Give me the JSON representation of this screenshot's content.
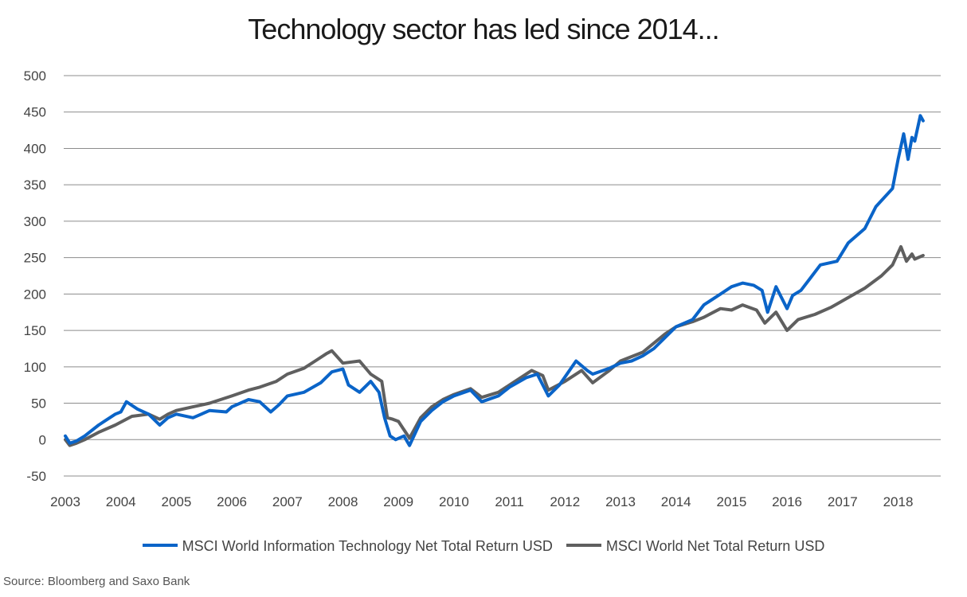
{
  "chart_data": {
    "type": "line",
    "title": "Technology sector has led since 2014...",
    "xlabel": "",
    "ylabel": "",
    "ylim": [
      -50,
      500
    ],
    "xlim": [
      2003,
      2018.75
    ],
    "yticks": [
      -50,
      0,
      50,
      100,
      150,
      200,
      250,
      300,
      350,
      400,
      450,
      500
    ],
    "xticks": [
      "2003",
      "2004",
      "2005",
      "2006",
      "2007",
      "2008",
      "2009",
      "2010",
      "2011",
      "2012",
      "2013",
      "2014",
      "2015",
      "2016",
      "2017",
      "2018"
    ],
    "grid": true,
    "legend_position": "bottom",
    "series": [
      {
        "name": "MSCI World Information Technology Net Total Return USD",
        "color": "#0a64c8",
        "x": [
          2003.0,
          2003.08,
          2003.2,
          2003.35,
          2003.6,
          2003.9,
          2004.0,
          2004.1,
          2004.3,
          2004.5,
          2004.7,
          2004.85,
          2005.0,
          2005.3,
          2005.6,
          2005.9,
          2006.0,
          2006.3,
          2006.5,
          2006.7,
          2006.85,
          2007.0,
          2007.3,
          2007.6,
          2007.8,
          2008.0,
          2008.1,
          2008.3,
          2008.5,
          2008.65,
          2008.75,
          2008.85,
          2008.95,
          2009.1,
          2009.2,
          2009.4,
          2009.6,
          2009.8,
          2010.0,
          2010.3,
          2010.5,
          2010.8,
          2011.0,
          2011.3,
          2011.5,
          2011.7,
          2011.9,
          2012.2,
          2012.4,
          2012.5,
          2012.8,
          2013.0,
          2013.2,
          2013.4,
          2013.6,
          2013.8,
          2014.0,
          2014.3,
          2014.5,
          2014.8,
          2015.0,
          2015.2,
          2015.4,
          2015.55,
          2015.65,
          2015.8,
          2016.0,
          2016.1,
          2016.25,
          2016.4,
          2016.6,
          2016.9,
          2017.1,
          2017.4,
          2017.6,
          2017.9,
          2018.0,
          2018.1,
          2018.18,
          2018.25,
          2018.3,
          2018.4,
          2018.45
        ],
        "values": [
          5,
          -5,
          -2,
          5,
          20,
          35,
          38,
          52,
          42,
          35,
          20,
          30,
          35,
          30,
          40,
          38,
          45,
          55,
          52,
          38,
          48,
          60,
          65,
          78,
          93,
          97,
          75,
          65,
          80,
          65,
          30,
          5,
          0,
          5,
          -8,
          25,
          40,
          52,
          60,
          68,
          52,
          60,
          72,
          85,
          90,
          60,
          75,
          108,
          95,
          90,
          98,
          105,
          108,
          115,
          125,
          140,
          155,
          165,
          185,
          200,
          210,
          215,
          212,
          205,
          175,
          210,
          180,
          198,
          205,
          220,
          240,
          245,
          270,
          290,
          320,
          345,
          385,
          420,
          385,
          415,
          410,
          445,
          438
        ]
      },
      {
        "name": "MSCI World Net Total Return USD",
        "color": "#5f5f5f",
        "x": [
          2003.0,
          2003.08,
          2003.2,
          2003.35,
          2003.6,
          2003.9,
          2004.2,
          2004.5,
          2004.7,
          2004.85,
          2005.0,
          2005.3,
          2005.6,
          2006.0,
          2006.3,
          2006.5,
          2006.8,
          2007.0,
          2007.3,
          2007.5,
          2007.7,
          2007.8,
          2008.0,
          2008.3,
          2008.5,
          2008.7,
          2008.8,
          2008.9,
          2009.0,
          2009.2,
          2009.4,
          2009.6,
          2009.8,
          2010.0,
          2010.3,
          2010.5,
          2010.8,
          2011.0,
          2011.4,
          2011.6,
          2011.7,
          2012.0,
          2012.3,
          2012.5,
          2012.8,
          2013.0,
          2013.4,
          2013.8,
          2014.0,
          2014.3,
          2014.5,
          2014.8,
          2015.0,
          2015.2,
          2015.45,
          2015.6,
          2015.8,
          2016.0,
          2016.2,
          2016.5,
          2016.8,
          2017.1,
          2017.4,
          2017.7,
          2017.9,
          2018.05,
          2018.15,
          2018.25,
          2018.3,
          2018.45
        ],
        "values": [
          0,
          -8,
          -5,
          0,
          10,
          20,
          32,
          35,
          28,
          35,
          40,
          45,
          50,
          60,
          68,
          72,
          80,
          90,
          98,
          108,
          118,
          122,
          105,
          108,
          90,
          80,
          30,
          28,
          25,
          2,
          30,
          45,
          55,
          62,
          70,
          58,
          65,
          75,
          95,
          88,
          68,
          80,
          95,
          78,
          95,
          108,
          120,
          145,
          155,
          162,
          168,
          180,
          178,
          185,
          178,
          160,
          175,
          150,
          165,
          172,
          182,
          195,
          208,
          225,
          240,
          265,
          245,
          255,
          248,
          253
        ]
      }
    ]
  },
  "legend": {
    "items": [
      {
        "label": "MSCI World Information Technology Net Total Return USD",
        "color": "#0a64c8"
      },
      {
        "label": "MSCI World Net Total Return USD",
        "color": "#5f5f5f"
      }
    ]
  },
  "source": "Source: Bloomberg and Saxo Bank"
}
